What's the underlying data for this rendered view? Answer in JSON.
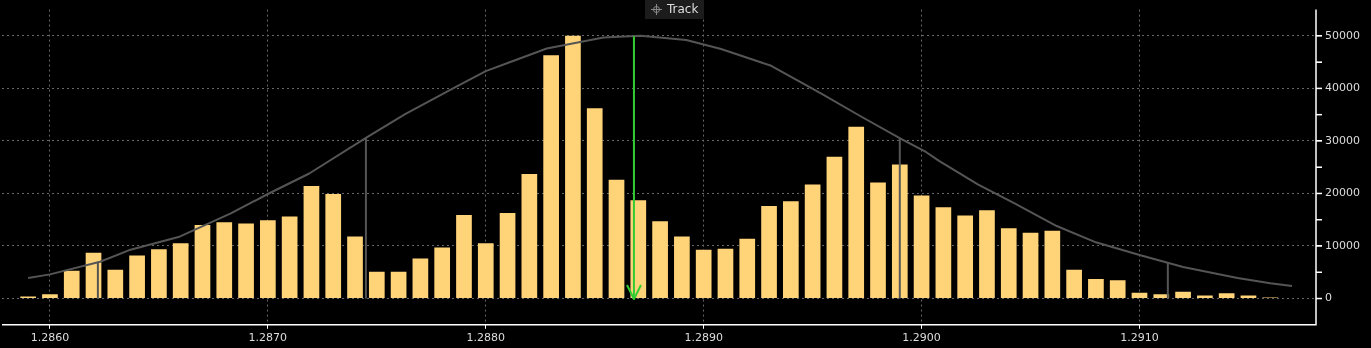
{
  "chart_data": {
    "type": "histogram",
    "bins": [
      1.28585,
      1.28595,
      1.28605,
      1.28615,
      1.28625,
      1.28635,
      1.28645,
      1.28655,
      1.28665,
      1.28675,
      1.28685,
      1.28695,
      1.28705,
      1.28715,
      1.28725,
      1.28735,
      1.28745,
      1.28755,
      1.28765,
      1.28775,
      1.28785,
      1.28795,
      1.28805,
      1.28815,
      1.28825,
      1.28835,
      1.28845,
      1.28855,
      1.28865,
      1.28875,
      1.28885,
      1.28895,
      1.28905,
      1.28915,
      1.28925,
      1.28935,
      1.28945,
      1.28955,
      1.28965,
      1.28975,
      1.28985,
      1.28995,
      1.29005,
      1.29015,
      1.29025,
      1.29035,
      1.29045,
      1.29055,
      1.29065,
      1.29075,
      1.29085,
      1.29095,
      1.29105,
      1.29115,
      1.29125,
      1.29135,
      1.29145,
      1.29155,
      1.29165,
      1.29175
    ],
    "series": [
      {
        "color": "#ffd479",
        "values": [
          400,
          800,
          5300,
          8700,
          5500,
          8200,
          9400,
          10500,
          14000,
          14500,
          14300,
          14900,
          15600,
          21400,
          19900,
          11800,
          5100,
          5100,
          7600,
          9700,
          15900,
          10500,
          16300,
          23700,
          46300,
          50000,
          36200,
          22600,
          18700,
          14700,
          11800,
          9300,
          9500,
          11400,
          17600,
          18500,
          21700,
          27000,
          32700,
          22100,
          25500,
          19600,
          17400,
          15800,
          16800,
          13400,
          12500,
          12900,
          5500,
          3700,
          3500,
          1100,
          800,
          1300,
          600,
          1000,
          600,
          200,
          100
        ]
      },
      {
        "type": "line",
        "color": "#555555",
        "x": [
          1.2859,
          1.286,
          1.28623,
          1.28637,
          1.28659,
          1.28683,
          1.287,
          1.28719,
          1.28745,
          1.28763,
          1.28785,
          1.288,
          1.28828,
          1.28854,
          1.28871,
          1.28892,
          1.28908,
          1.28931,
          1.28954,
          1.28972,
          1.28991,
          1.29002,
          1.29008,
          1.29026,
          1.29045,
          1.29062,
          1.2908,
          1.291,
          1.2912,
          1.29145,
          1.2916,
          1.2917
        ],
        "values": [
          3900,
          4600,
          7000,
          9300,
          11700,
          16200,
          19900,
          23800,
          30600,
          35100,
          40000,
          43300,
          47600,
          49700,
          50000,
          49200,
          47500,
          44300,
          39000,
          34700,
          30300,
          27900,
          26200,
          21700,
          17600,
          13800,
          10700,
          8300,
          6000,
          3900,
          2900,
          2400
        ]
      }
    ],
    "ref_lines": [
      {
        "axis": "x",
        "value": 1.28622
      },
      {
        "axis": "x",
        "value": 1.28745
      },
      {
        "axis": "x",
        "value": 1.2899
      },
      {
        "axis": "x",
        "value": 1.29113
      },
      {
        "axis": "x",
        "value": 1.28868,
        "color": "#33cc33"
      }
    ],
    "annotations": [
      "Track"
    ],
    "xlim": [
      1.28578,
      1.29181
    ],
    "ylim": [
      -5000,
      55000
    ],
    "xticks": [
      {
        "value": 1.286,
        "label": "1.2860"
      },
      {
        "value": 1.287,
        "label": "1.2870"
      },
      {
        "value": 1.288,
        "label": "1.2880"
      },
      {
        "value": 1.289,
        "label": "1.2890"
      },
      {
        "value": 1.29,
        "label": "1.2900"
      },
      {
        "value": 1.291,
        "label": "1.2910"
      }
    ],
    "yticks": [
      0,
      {
        "value": 5000,
        "label": null
      },
      10000,
      {
        "value": 15000,
        "label": null
      },
      20000,
      {
        "value": 25000,
        "label": null
      },
      30000,
      {
        "value": 35000,
        "label": null
      },
      40000,
      {
        "value": 45000,
        "label": null
      },
      50000
    ],
    "grid": true,
    "legend": false
  }
}
